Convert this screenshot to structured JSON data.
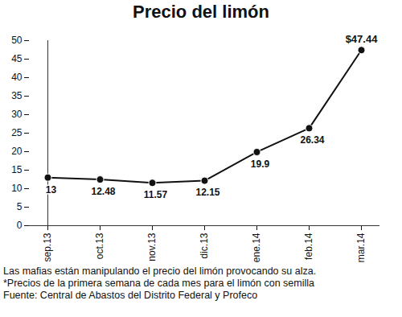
{
  "chart_data": {
    "type": "line",
    "title": "Precio del limón",
    "categories": [
      "sep.13",
      "oct.13",
      "nov.13",
      "dic.13",
      "ene.14",
      "feb.14",
      "mar.14"
    ],
    "values": [
      13,
      12.48,
      11.57,
      12.15,
      19.9,
      26.34,
      47.44
    ],
    "value_labels": [
      "13",
      "12.48",
      "11.57",
      "12.15",
      "19.9",
      "26.34",
      "$47.44"
    ],
    "data_labels": true,
    "color": "#111111",
    "marker": "circle",
    "ylim": [
      0,
      50
    ],
    "yticks": [
      0,
      5,
      10,
      15,
      20,
      25,
      30,
      35,
      40,
      45,
      50
    ],
    "grid": false,
    "annotations": [
      "Las mafias están manipulando el precio del limón provocando su alza.",
      "*Precios de la primera semana de cada mes para el limón con semilla",
      "Fuente: Central de Abastos del Distrito Federal y Profeco"
    ]
  }
}
